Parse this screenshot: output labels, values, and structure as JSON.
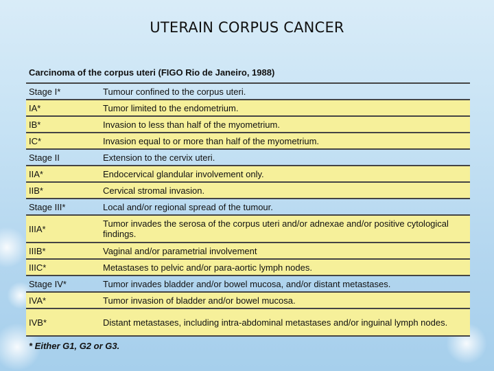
{
  "title": "UTERAIN CORPUS   CANCER",
  "subtitle": "Carcinoma of the corpus uteri (FIGO Rio de Janeiro, 1988)",
  "rows": [
    {
      "stage": "Stage I*",
      "desc": "Tumour confined to the corpus uteri.",
      "kind": "main"
    },
    {
      "stage": "IA*",
      "desc": "Tumor limited to the endometrium.",
      "kind": "sub"
    },
    {
      "stage": "IB*",
      "desc": "Invasion to less than half of the myometrium.",
      "kind": "sub"
    },
    {
      "stage": "IC*",
      "desc": "Invasion equal to or more than half of the myometrium.",
      "kind": "sub"
    },
    {
      "stage": "Stage II",
      "desc": "Extension to the cervix uteri.",
      "kind": "main"
    },
    {
      "stage": "IIA*",
      "desc": "Endocervical glandular involvement only.",
      "kind": "sub"
    },
    {
      "stage": "IIB*",
      "desc": "Cervical stromal invasion.",
      "kind": "sub"
    },
    {
      "stage": "Stage III*",
      "desc": "Local and/or regional spread of the tumour.",
      "kind": "main"
    },
    {
      "stage": "IIIA*",
      "desc": "Tumor invades the serosa of the corpus uteri and/or adnexae and/or positive cytological findings.",
      "kind": "sub"
    },
    {
      "stage": "IIIB*",
      "desc": "Vaginal and/or parametrial involvement",
      "kind": "sub"
    },
    {
      "stage": "IIIC*",
      "desc": "Metastases to pelvic and/or para-aortic lymph nodes.",
      "kind": "sub"
    },
    {
      "stage": "Stage IV*",
      "desc": "Tumor invades bladder and/or bowel mucosa, and/or distant metastases.",
      "kind": "main"
    },
    {
      "stage": "IVA*",
      "desc": "Tumor invasion of bladder and/or bowel mucosa.",
      "kind": "sub"
    },
    {
      "stage": "IVB*",
      "desc": "Distant metastases, including intra-abdominal metastases and/or inguinal lymph nodes.",
      "kind": "sub"
    }
  ],
  "footnote": "* Either G1, G2 or G3."
}
